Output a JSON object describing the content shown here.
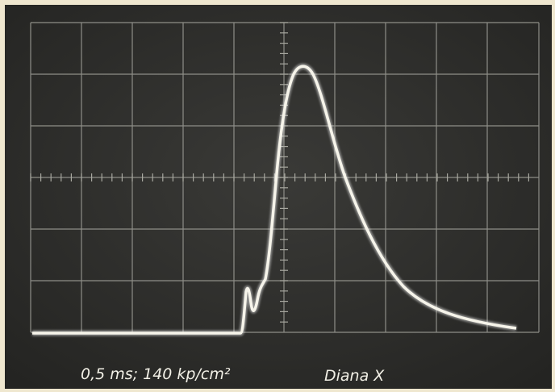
{
  "caption": {
    "settings": "0,5 ms; 140 kp/cm²",
    "material": "Diana X"
  }
}
